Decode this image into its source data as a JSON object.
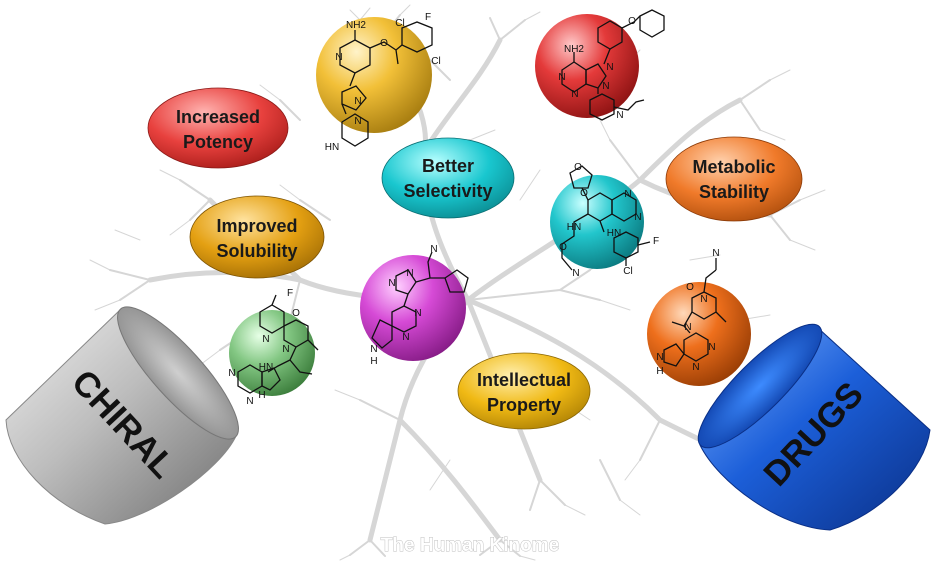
{
  "caption": "The Human Kinome",
  "capsules": [
    {
      "text": "CHIRAL",
      "color": "#b7b7b7"
    },
    {
      "text": "DRUGS",
      "color": "#1c5fd9"
    }
  ],
  "benefits": [
    {
      "lines": [
        "Increased",
        "Potency"
      ],
      "color": "#e8413e"
    },
    {
      "lines": [
        "Better",
        "Selectivity"
      ],
      "color": "#19c7cf"
    },
    {
      "lines": [
        "Metabolic",
        "Stability"
      ],
      "color": "#f07a2a"
    },
    {
      "lines": [
        "Improved",
        "Solubility"
      ],
      "color": "#e4a012"
    },
    {
      "lines": [
        "Intellectual",
        "Property"
      ],
      "color": "#f0b914"
    }
  ],
  "spheres": [
    {
      "color": "#f2c038",
      "atoms": [
        "NH2",
        "Cl",
        "F",
        "O",
        "Cl",
        "N",
        "N",
        "N",
        "HN"
      ]
    },
    {
      "color": "#e43a3a",
      "atoms": [
        "NH2",
        "N",
        "N",
        "N",
        "N",
        "N",
        "O"
      ]
    },
    {
      "color": "#22c6cc",
      "atoms": [
        "O",
        "O",
        "N",
        "N",
        "HN",
        "HN",
        "O",
        "N",
        "F",
        "Cl"
      ]
    },
    {
      "color": "#d64ad6",
      "atoms": [
        "N",
        "N",
        "N",
        "N",
        "N",
        "N",
        "H"
      ]
    },
    {
      "color": "#83c783",
      "atoms": [
        "F",
        "O",
        "N",
        "N",
        "HN",
        "N",
        "N",
        "H"
      ]
    },
    {
      "color": "#ee6f1c",
      "atoms": [
        "N",
        "O",
        "N",
        "N",
        "N",
        "N",
        "N",
        "H"
      ]
    }
  ]
}
